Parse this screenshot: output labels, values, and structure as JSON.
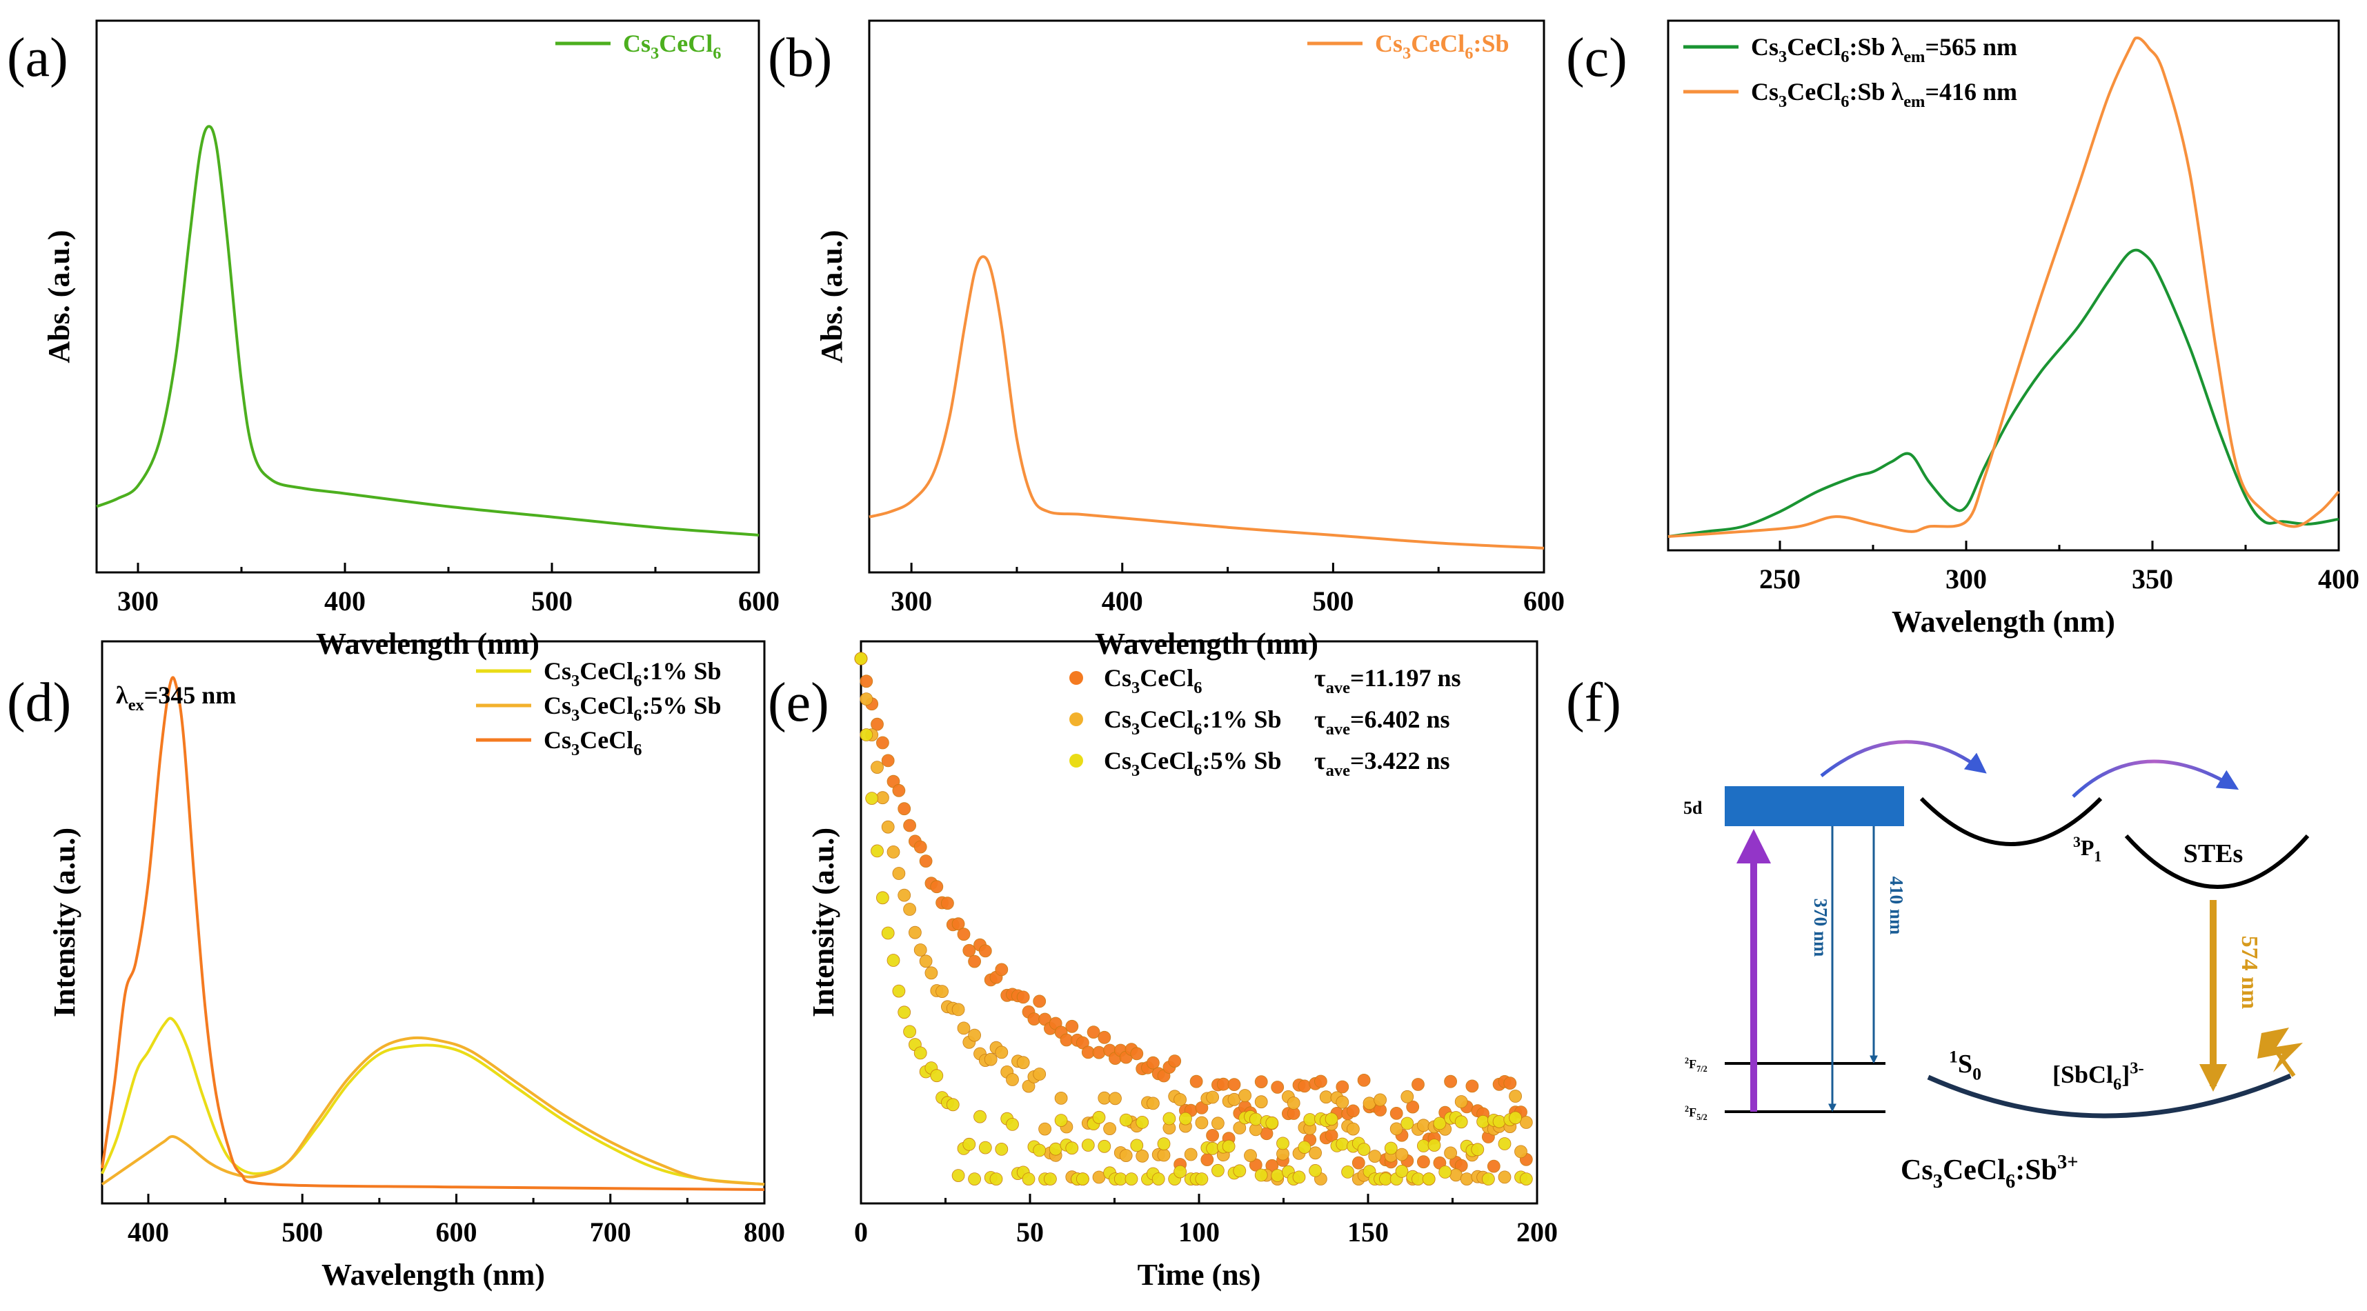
{
  "colors": {
    "green": "#4caf1e",
    "orange": "#f7903c",
    "orange_dark": "#f47a20",
    "green_c": "#1a9432",
    "yellow": "#eadc16",
    "amber": "#f3b12c",
    "purple": "#9335c8",
    "blue_box": "#1e6fc4",
    "blue_line": "#1a5d96",
    "gold": "#d79a1c",
    "navy": "#1c3251"
  },
  "chart_data": [
    {
      "id": "a",
      "panel_label": "(a)",
      "type": "line",
      "xlabel": "Wavelength (nm)",
      "ylabel": "Abs. (a.u.)",
      "xlim": [
        280,
        600
      ],
      "ylim": [
        0,
        1
      ],
      "xticks": [
        "300",
        "400",
        "500",
        "600"
      ],
      "legend_position": "top-right",
      "series": [
        {
          "name_parts": [
            "Cs",
            "3",
            "CeCl",
            "6"
          ],
          "color_key": "green",
          "points": [
            [
              280,
              0.1
            ],
            [
              290,
              0.115
            ],
            [
              300,
              0.14
            ],
            [
              310,
              0.22
            ],
            [
              318,
              0.38
            ],
            [
              325,
              0.62
            ],
            [
              330,
              0.78
            ],
            [
              334,
              0.83
            ],
            [
              338,
              0.79
            ],
            [
              343,
              0.62
            ],
            [
              350,
              0.34
            ],
            [
              356,
              0.2
            ],
            [
              365,
              0.15
            ],
            [
              380,
              0.135
            ],
            [
              400,
              0.125
            ],
            [
              450,
              0.1
            ],
            [
              500,
              0.08
            ],
            [
              550,
              0.06
            ],
            [
              600,
              0.045
            ]
          ]
        }
      ]
    },
    {
      "id": "b",
      "panel_label": "(b)",
      "type": "line",
      "xlabel": "Wavelength (nm)",
      "ylabel": "Abs. (a.u.)",
      "xlim": [
        280,
        600
      ],
      "ylim": [
        0,
        1
      ],
      "xticks": [
        "300",
        "400",
        "500",
        "600"
      ],
      "legend_position": "top-right",
      "series": [
        {
          "name_parts": [
            "Cs",
            "3",
            "CeCl",
            "6",
            ":Sb"
          ],
          "color_key": "orange",
          "points": [
            [
              280,
              0.08
            ],
            [
              290,
              0.09
            ],
            [
              300,
              0.11
            ],
            [
              310,
              0.16
            ],
            [
              318,
              0.27
            ],
            [
              325,
              0.44
            ],
            [
              330,
              0.55
            ],
            [
              334,
              0.58
            ],
            [
              338,
              0.55
            ],
            [
              343,
              0.44
            ],
            [
              350,
              0.23
            ],
            [
              357,
              0.12
            ],
            [
              365,
              0.09
            ],
            [
              380,
              0.085
            ],
            [
              400,
              0.078
            ],
            [
              450,
              0.06
            ],
            [
              500,
              0.045
            ],
            [
              550,
              0.03
            ],
            [
              600,
              0.02
            ]
          ]
        }
      ]
    },
    {
      "id": "c",
      "panel_label": "(c)",
      "type": "line",
      "xlabel": "Wavelength (nm)",
      "ylabel": "",
      "xlim": [
        220,
        400
      ],
      "ylim": [
        0,
        1
      ],
      "xticks": [
        "250",
        "300",
        "350",
        "400"
      ],
      "legend_position": "top-left",
      "series": [
        {
          "name_parts": [
            "Cs",
            "3",
            "CeCl",
            "6",
            ":Sb  λ",
            "em",
            "=565 nm"
          ],
          "color_key": "green_c",
          "points": [
            [
              220,
              0.0
            ],
            [
              230,
              0.01
            ],
            [
              240,
              0.02
            ],
            [
              250,
              0.05
            ],
            [
              260,
              0.09
            ],
            [
              270,
              0.12
            ],
            [
              275,
              0.13
            ],
            [
              280,
              0.15
            ],
            [
              285,
              0.165
            ],
            [
              290,
              0.11
            ],
            [
              296,
              0.06
            ],
            [
              300,
              0.06
            ],
            [
              305,
              0.14
            ],
            [
              312,
              0.24
            ],
            [
              320,
              0.33
            ],
            [
              330,
              0.42
            ],
            [
              338,
              0.51
            ],
            [
              344,
              0.57
            ],
            [
              348,
              0.565
            ],
            [
              352,
              0.52
            ],
            [
              360,
              0.38
            ],
            [
              368,
              0.21
            ],
            [
              375,
              0.08
            ],
            [
              380,
              0.03
            ],
            [
              385,
              0.03
            ],
            [
              392,
              0.025
            ],
            [
              400,
              0.035
            ]
          ]
        },
        {
          "name_parts": [
            "Cs",
            "3",
            "CeCl",
            "6",
            ":Sb  λ",
            "em",
            "=416 nm"
          ],
          "color_key": "orange",
          "points": [
            [
              220,
              0.0
            ],
            [
              240,
              0.01
            ],
            [
              255,
              0.02
            ],
            [
              265,
              0.04
            ],
            [
              275,
              0.025
            ],
            [
              285,
              0.01
            ],
            [
              290,
              0.02
            ],
            [
              300,
              0.03
            ],
            [
              305,
              0.12
            ],
            [
              312,
              0.29
            ],
            [
              320,
              0.48
            ],
            [
              330,
              0.7
            ],
            [
              338,
              0.88
            ],
            [
              344,
              0.98
            ],
            [
              346,
              1.0
            ],
            [
              349,
              0.98
            ],
            [
              353,
              0.93
            ],
            [
              360,
              0.73
            ],
            [
              367,
              0.38
            ],
            [
              373,
              0.13
            ],
            [
              380,
              0.05
            ],
            [
              388,
              0.02
            ],
            [
              395,
              0.05
            ],
            [
              400,
              0.09
            ]
          ]
        }
      ]
    },
    {
      "id": "d",
      "panel_label": "(d)",
      "type": "line",
      "xlabel": "Wavelength (nm)",
      "ylabel": "Intensity (a.u.)",
      "xlim": [
        370,
        800
      ],
      "ylim": [
        0,
        1
      ],
      "xticks": [
        "400",
        "500",
        "600",
        "700",
        "800"
      ],
      "annotation_parts": [
        "λ",
        "ex",
        "=345 nm"
      ],
      "legend_position": "top-right",
      "series": [
        {
          "name_parts": [
            "Cs",
            "3",
            "CeCl",
            "6",
            ":1% Sb"
          ],
          "color_key": "yellow",
          "points": [
            [
              370,
              0.03
            ],
            [
              380,
              0.1
            ],
            [
              392,
              0.22
            ],
            [
              400,
              0.26
            ],
            [
              410,
              0.31
            ],
            [
              416,
              0.32
            ],
            [
              425,
              0.27
            ],
            [
              435,
              0.18
            ],
            [
              445,
              0.1
            ],
            [
              455,
              0.05
            ],
            [
              470,
              0.03
            ],
            [
              490,
              0.05
            ],
            [
              510,
              0.12
            ],
            [
              530,
              0.2
            ],
            [
              550,
              0.255
            ],
            [
              570,
              0.27
            ],
            [
              590,
              0.27
            ],
            [
              610,
              0.25
            ],
            [
              640,
              0.19
            ],
            [
              670,
              0.13
            ],
            [
              700,
              0.08
            ],
            [
              730,
              0.04
            ],
            [
              760,
              0.02
            ],
            [
              800,
              0.01
            ]
          ]
        },
        {
          "name_parts": [
            "Cs",
            "3",
            "CeCl",
            "6",
            ":5% Sb"
          ],
          "color_key": "amber",
          "points": [
            [
              370,
              0.01
            ],
            [
              385,
              0.04
            ],
            [
              400,
              0.07
            ],
            [
              410,
              0.09
            ],
            [
              416,
              0.1
            ],
            [
              425,
              0.085
            ],
            [
              440,
              0.05
            ],
            [
              455,
              0.03
            ],
            [
              470,
              0.025
            ],
            [
              490,
              0.05
            ],
            [
              510,
              0.13
            ],
            [
              530,
              0.21
            ],
            [
              550,
              0.265
            ],
            [
              570,
              0.285
            ],
            [
              590,
              0.28
            ],
            [
              610,
              0.26
            ],
            [
              640,
              0.2
            ],
            [
              670,
              0.14
            ],
            [
              700,
              0.09
            ],
            [
              730,
              0.05
            ],
            [
              760,
              0.02
            ],
            [
              800,
              0.01
            ]
          ]
        },
        {
          "name_parts": [
            "Cs",
            "3",
            "CeCl",
            "6"
          ],
          "color_key": "orange_dark",
          "points": [
            [
              370,
              0.04
            ],
            [
              378,
              0.2
            ],
            [
              385,
              0.37
            ],
            [
              392,
              0.43
            ],
            [
              400,
              0.58
            ],
            [
              408,
              0.82
            ],
            [
              414,
              0.95
            ],
            [
              418,
              0.95
            ],
            [
              423,
              0.85
            ],
            [
              430,
              0.58
            ],
            [
              437,
              0.34
            ],
            [
              444,
              0.18
            ],
            [
              452,
              0.08
            ],
            [
              460,
              0.03
            ],
            [
              480,
              0.01
            ],
            [
              600,
              0.005
            ],
            [
              800,
              0.0
            ]
          ]
        }
      ]
    },
    {
      "id": "e",
      "panel_label": "(e)",
      "type": "scatter",
      "xlabel": "Time (ns)",
      "ylabel": "Intensity (a.u.)",
      "xlim": [
        0,
        200
      ],
      "ylim": [
        0,
        1
      ],
      "xticks": [
        "0",
        "50",
        "100",
        "150",
        "200"
      ],
      "legend_position": "top-right",
      "series": [
        {
          "name_parts": [
            "Cs",
            "3",
            "CeCl",
            "6"
          ],
          "tau_parts": [
            "τ",
            "ave",
            "=11.197 ns"
          ],
          "color_key": "orange_dark",
          "tau_ns": 11.197,
          "floor": 0.2
        },
        {
          "name_parts": [
            "Cs",
            "3",
            "CeCl",
            "6",
            ":1% Sb"
          ],
          "tau_parts": [
            "τ",
            "ave",
            "=6.402 ns"
          ],
          "color_key": "amber",
          "tau_ns": 6.402,
          "floor": 0.17
        },
        {
          "name_parts": [
            "Cs",
            "3",
            "CeCl",
            "6",
            ":5% Sb"
          ],
          "tau_parts": [
            "τ",
            "ave",
            "=3.422 ns"
          ],
          "color_key": "yellow",
          "tau_ns": 3.422,
          "floor": 0.13
        }
      ]
    }
  ],
  "diagram_f": {
    "panel_label": "(f)",
    "level_5d": "5d",
    "level_2f72": [
      "2",
      "F",
      "7/2"
    ],
    "level_2f52": [
      "2",
      "F",
      "5/2"
    ],
    "em_370": "370 nm",
    "em_410": "410 nm",
    "level_3p1": [
      "3",
      "P",
      "1"
    ],
    "stes": "STEs",
    "em_574": "574 nm",
    "level_1s0": [
      "1",
      "S",
      "0"
    ],
    "octahedron": [
      "[SbCl",
      "6",
      "]",
      "3-"
    ],
    "compound": [
      "Cs",
      "3",
      "CeCl",
      "6",
      ":Sb",
      "3+"
    ]
  }
}
